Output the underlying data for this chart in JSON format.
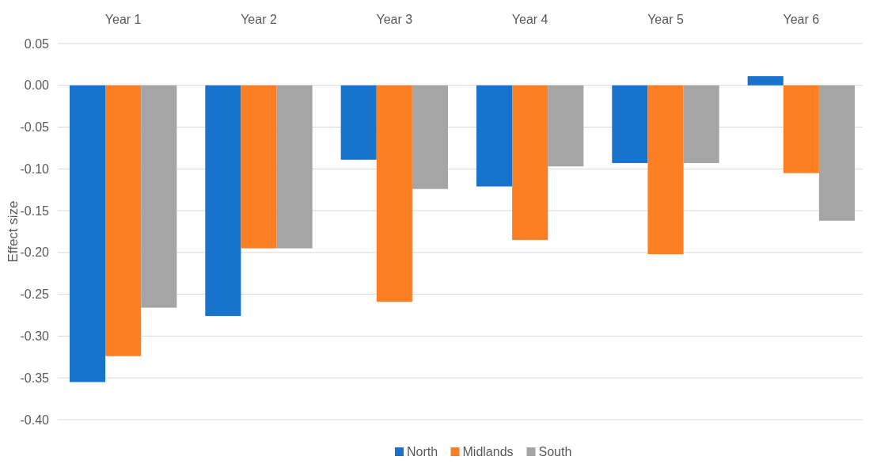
{
  "chart_data": {
    "type": "bar",
    "ylabel": "Effect size",
    "categories": [
      "Year 1",
      "Year 2",
      "Year 3",
      "Year 4",
      "Year 5",
      "Year 6"
    ],
    "series": [
      {
        "name": "North",
        "color": "#1873cc",
        "values": [
          -0.355,
          -0.276,
          -0.089,
          -0.121,
          -0.093,
          0.011
        ]
      },
      {
        "name": "Midlands",
        "color": "#fd7f23",
        "values": [
          -0.324,
          -0.195,
          -0.259,
          -0.185,
          -0.202,
          -0.105
        ]
      },
      {
        "name": "South",
        "color": "#a5a5a5",
        "values": [
          -0.266,
          -0.195,
          -0.124,
          -0.097,
          -0.093,
          -0.162
        ]
      }
    ],
    "ylim": [
      -0.4,
      0.05
    ],
    "yticks": [
      {
        "value": -0.4,
        "label": "-0.40"
      },
      {
        "value": -0.35,
        "label": "-0.35"
      },
      {
        "value": -0.3,
        "label": "-0.30"
      },
      {
        "value": -0.25,
        "label": "-0.25"
      },
      {
        "value": -0.2,
        "label": "-0.20"
      },
      {
        "value": -0.15,
        "label": "-0.15"
      },
      {
        "value": -0.1,
        "label": "-0.10"
      },
      {
        "value": -0.05,
        "label": "-0.05"
      },
      {
        "value": 0,
        "label": "0.00"
      },
      {
        "value": 0.05,
        "label": "0.05"
      }
    ],
    "grid": "y",
    "legend": "bottom"
  }
}
